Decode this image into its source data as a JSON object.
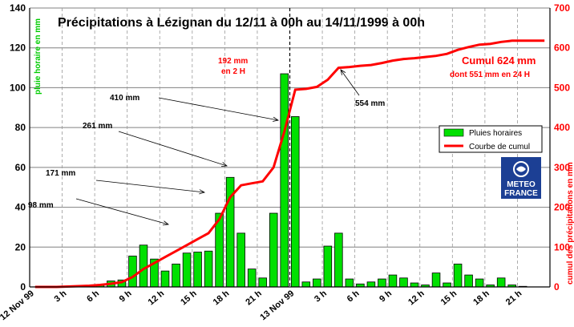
{
  "chart_data": {
    "type": "bar",
    "title": "Précipitations à Lézignan du 12/11 à 00h au 14/11/1999 à 00h",
    "ylabel_left": "pluie horaire en mm",
    "ylabel_right": "cumul des précipitations en mm",
    "ylim_left": [
      0,
      140
    ],
    "ylim_right": [
      0,
      700
    ],
    "yticks_left": [
      "0",
      "20",
      "40",
      "60",
      "80",
      "100",
      "120",
      "140"
    ],
    "yticks_right": [
      "0",
      "100",
      "200",
      "300",
      "400",
      "500",
      "600",
      "700"
    ],
    "grid": "horizontal solid, vertical dashed",
    "legend_position": "right",
    "x_tick_labels": [
      "12 Nov 99",
      "3 h",
      "6 h",
      "9 h",
      "12 h",
      "15 h",
      "18 h",
      "21 h",
      "13 Nov 99",
      "3 h",
      "6 h",
      "9 h",
      "12 h",
      "15 h",
      "18 h",
      "21 h"
    ],
    "series": [
      {
        "name": "Pluies horaires",
        "type": "bar",
        "axis": "left",
        "color": "#00e000",
        "values": [
          0,
          0,
          0.3,
          0.3,
          0.5,
          0.5,
          1.2,
          3,
          3.5,
          15.5,
          21,
          14,
          8,
          11.5,
          17,
          17.5,
          18,
          37,
          55,
          27,
          9,
          4.5,
          37,
          107,
          85.5,
          2.5,
          4,
          20.5,
          27,
          4,
          1.5,
          2.5,
          4,
          6,
          4.5,
          2,
          1,
          7,
          2,
          11.5,
          6,
          4,
          1,
          4.5,
          1,
          0.3,
          0,
          0
        ]
      },
      {
        "name": "Courbe de cumul",
        "type": "line",
        "axis": "right",
        "color": "#ff0000",
        "values": [
          0,
          0,
          0,
          1,
          2,
          3,
          5,
          8,
          12,
          25,
          45,
          60,
          75,
          90,
          105,
          120,
          135,
          170,
          225,
          255,
          260,
          265,
          300,
          390,
          495,
          497,
          502,
          520,
          550,
          552,
          555,
          557,
          562,
          568,
          572,
          574,
          577,
          580,
          585,
          595,
          602,
          608,
          610,
          615,
          618,
          618,
          618,
          618
        ]
      }
    ],
    "annotations": [
      {
        "text": "192 mm",
        "color": "#ff0000"
      },
      {
        "text": "en 2 H",
        "color": "#ff0000"
      },
      {
        "text": "410 mm",
        "color": "#000000"
      },
      {
        "text": "261 mm",
        "color": "#000000"
      },
      {
        "text": "171 mm",
        "color": "#000000"
      },
      {
        "text": "98 mm",
        "color": "#000000"
      },
      {
        "text": "554 mm",
        "color": "#000000"
      },
      {
        "text": "Cumul 624 mm",
        "color": "#ff0000"
      },
      {
        "text": "dont 551 mm en 24 H",
        "color": "#ff0000"
      }
    ],
    "logo": {
      "line1": "METEO",
      "line2": "FRANCE"
    }
  }
}
